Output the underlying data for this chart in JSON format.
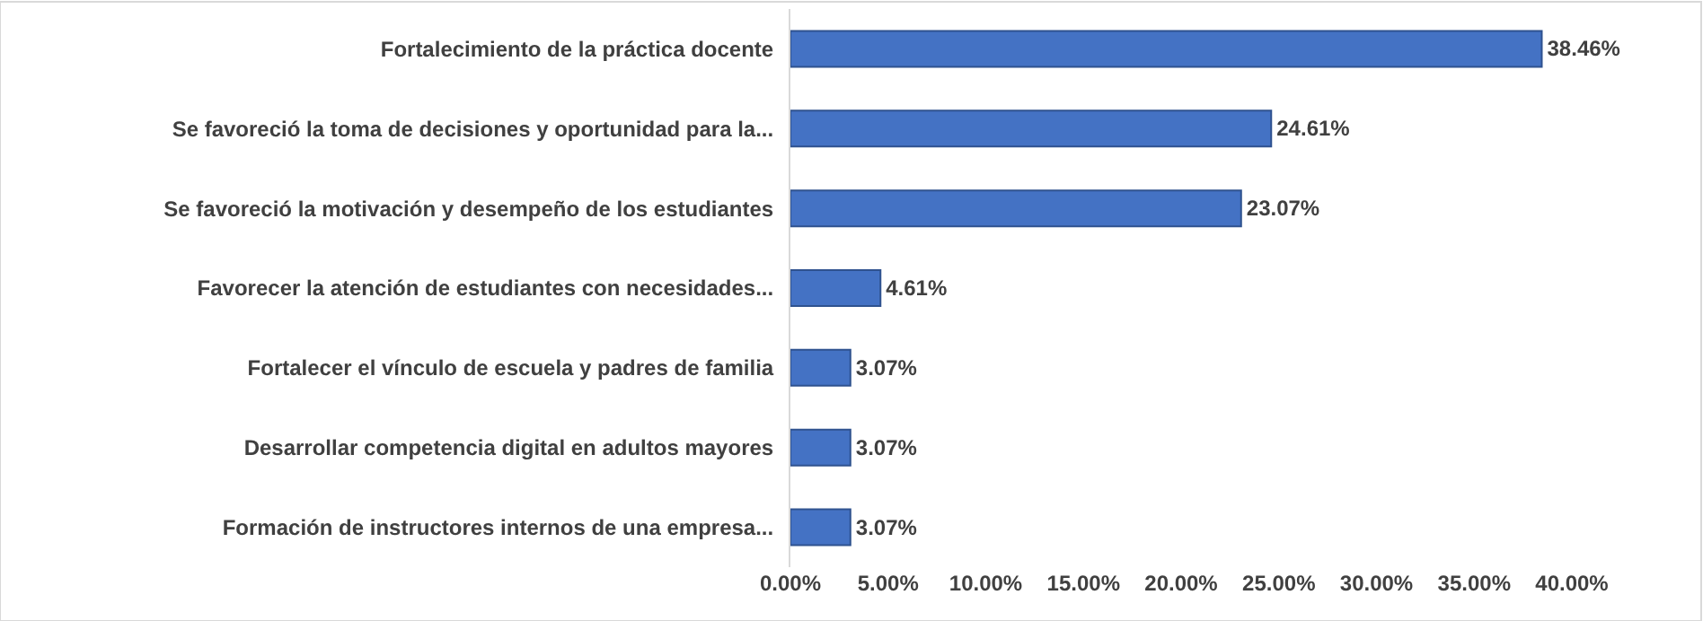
{
  "chart_data": {
    "type": "bar",
    "orientation": "horizontal",
    "categories": [
      "Fortalecimiento de la práctica docente",
      "Se favoreció la toma de decisiones y oportunidad para la...",
      "Se favoreció la motivación y desempeño de los estudiantes",
      "Favorecer la atención de estudiantes con necesidades...",
      "Fortalecer el vínculo de escuela y padres de familia",
      "Desarrollar competencia digital en adultos mayores",
      "Formación de instructores internos de una empresa..."
    ],
    "values": [
      38.46,
      24.61,
      23.07,
      4.61,
      3.07,
      3.07,
      3.07
    ],
    "value_labels": [
      "38.46%",
      "24.61%",
      "23.07%",
      "4.61%",
      "3.07%",
      "3.07%",
      "3.07%"
    ],
    "color": "#4472c4",
    "xlim": [
      0,
      40
    ],
    "xticks": [
      {
        "value": 0,
        "label": "0.00%"
      },
      {
        "value": 5,
        "label": "5.00%"
      },
      {
        "value": 10,
        "label": "10.00%"
      },
      {
        "value": 15,
        "label": "15.00%"
      },
      {
        "value": 20,
        "label": "20.00%"
      },
      {
        "value": 25,
        "label": "25.00%"
      },
      {
        "value": 30,
        "label": "30.00%"
      },
      {
        "value": 35,
        "label": "35.00%"
      },
      {
        "value": 40,
        "label": "40.00%"
      }
    ],
    "legend": false
  }
}
